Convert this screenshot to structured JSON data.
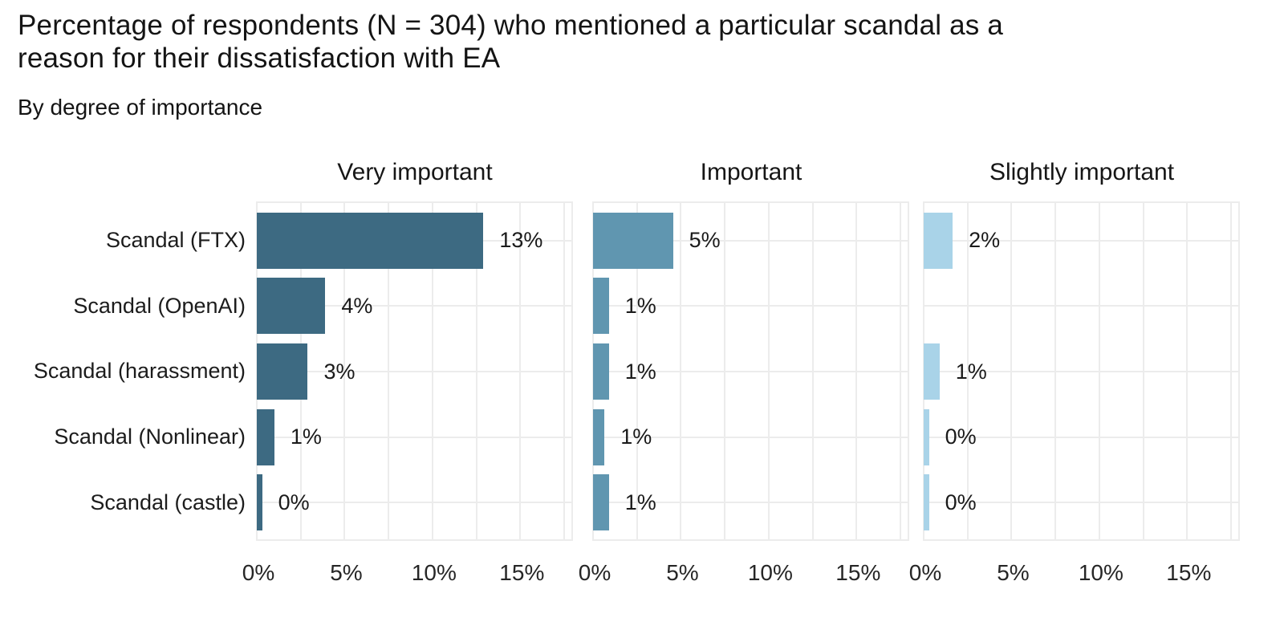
{
  "title": "Percentage of respondents (N = 304) who mentioned a particular scandal as a reason for their dissatisfaction with EA",
  "title_lines": [
    "Percentage of respondents (N = 304) who mentioned a particular scandal as a",
    "reason for their dissatisfaction with EA"
  ],
  "subtitle": "By degree of importance",
  "chart_data": {
    "type": "bar",
    "orientation": "horizontal",
    "categories": [
      "Scandal (FTX)",
      "Scandal (OpenAI)",
      "Scandal (harassment)",
      "Scandal (Nonlinear)",
      "Scandal (castle)"
    ],
    "series": [
      {
        "name": "Very important",
        "color": "#3d6a82",
        "values": [
          13,
          4,
          3,
          1,
          0
        ],
        "labels": [
          "13%",
          "4%",
          "3%",
          "1%",
          "0%"
        ],
        "bar_pct": [
          12.9,
          3.9,
          2.9,
          1.0,
          0.3
        ]
      },
      {
        "name": "Important",
        "color": "#6096b0",
        "values": [
          5,
          1,
          1,
          1,
          1
        ],
        "labels": [
          "5%",
          "1%",
          "1%",
          "1%",
          "1%"
        ],
        "bar_pct": [
          4.55,
          0.9,
          0.9,
          0.65,
          0.9
        ]
      },
      {
        "name": "Slightly important",
        "color": "#a9d3e8",
        "values": [
          2,
          null,
          1,
          0,
          0
        ],
        "labels": [
          "2%",
          null,
          "1%",
          "0%",
          "0%"
        ],
        "bar_pct": [
          1.65,
          null,
          0.9,
          0.3,
          0.3
        ]
      }
    ],
    "x_ticks": [
      "0%",
      "5%",
      "10%",
      "15%"
    ],
    "x_tick_values": [
      0,
      5,
      10,
      15
    ],
    "xlim": [
      0,
      18
    ],
    "grid_step": 2.5,
    "grid_color": "#ececec",
    "legend": "none",
    "background": "#ffffff"
  }
}
